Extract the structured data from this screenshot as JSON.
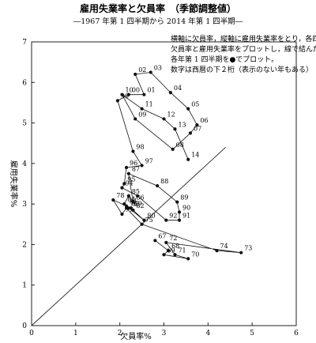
{
  "chart_data": {
    "type": "scatter",
    "title": "雇用失業率と欠員率　（季節調整値）",
    "subtitle": "―1967 年第 1 四半期から 2014 年第 1 四半期―",
    "notes": [
      "横軸に欠員率，縦軸に雇用失業率をとり，各四半期の",
      "欠員率と雇用失業率をプロットし，線で結んだもの。",
      "各年第 1 四半期を●でプロット。",
      "数字は西暦の下２桁（表示のない年もある）"
    ],
    "xlabel": "欠員率%",
    "ylabel": "雇用失業率%",
    "xlim": [
      0,
      6
    ],
    "ylim": [
      0,
      7
    ],
    "xticks": [
      "0",
      "1",
      "2",
      "3",
      "4",
      "5",
      "6"
    ],
    "yticks": [
      "0",
      "1",
      "2",
      "3",
      "4",
      "5",
      "6",
      "7"
    ],
    "reference_line": "y = x",
    "line_color": "#111111",
    "marker_color": "#111111",
    "points": [
      {
        "year": "67",
        "x": 2.8,
        "y": 2.1,
        "labeled": true
      },
      {
        "year": "68",
        "x": 3.1,
        "y": 1.85,
        "labeled": true
      },
      {
        "year": "69",
        "x": 3.0,
        "y": 1.75,
        "labeled": true
      },
      {
        "year": "70",
        "x": 3.55,
        "y": 1.65,
        "labeled": true
      },
      {
        "year": "71",
        "x": 3.25,
        "y": 1.75,
        "labeled": true
      },
      {
        "year": "72",
        "x": 3.05,
        "y": 2.05,
        "labeled": true
      },
      {
        "year": "73",
        "x": 4.75,
        "y": 1.8,
        "labeled": true
      },
      {
        "year": "74",
        "x": 4.2,
        "y": 1.85,
        "labeled": true
      },
      {
        "year": "75",
        "x": 2.5,
        "y": 2.5,
        "labeled": true
      },
      {
        "year": "76",
        "x": 2.15,
        "y": 2.9,
        "labeled": true
      },
      {
        "year": "77",
        "x": 2.05,
        "y": 2.75,
        "labeled": true
      },
      {
        "year": "78",
        "x": 1.85,
        "y": 3.1,
        "labeled": true
      },
      {
        "year": "79",
        "x": 2.25,
        "y": 2.9,
        "labeled": true
      },
      {
        "year": "80",
        "x": 2.55,
        "y": 2.6,
        "labeled": true
      },
      {
        "year": "81",
        "x": 2.15,
        "y": 2.95,
        "labeled": true
      },
      {
        "year": "82",
        "x": 2.3,
        "y": 2.85,
        "labeled": true
      },
      {
        "year": "83",
        "x": 2.2,
        "y": 2.9,
        "labeled": true
      },
      {
        "year": "84",
        "x": 2.1,
        "y": 3.0,
        "labeled": true
      },
      {
        "year": "85",
        "x": 2.2,
        "y": 3.2,
        "labeled": true
      },
      {
        "year": "86",
        "x": 2.3,
        "y": 3.05,
        "labeled": true
      },
      {
        "year": "87",
        "x": 2.2,
        "y": 3.75,
        "labeled": true
      },
      {
        "year": "88",
        "x": 2.85,
        "y": 3.45,
        "labeled": true
      },
      {
        "year": "89",
        "x": 3.3,
        "y": 3.05,
        "labeled": true
      },
      {
        "year": "90",
        "x": 3.35,
        "y": 2.8,
        "labeled": true
      },
      {
        "year": "91",
        "x": 3.35,
        "y": 2.6,
        "labeled": true
      },
      {
        "year": "92",
        "x": 3.05,
        "y": 2.6,
        "labeled": true
      },
      {
        "year": "93",
        "x": 2.4,
        "y": 3.2,
        "labeled": false
      },
      {
        "year": "94",
        "x": 2.05,
        "y": 3.4,
        "labeled": true
      },
      {
        "year": "95",
        "x": 2.1,
        "y": 3.5,
        "labeled": true
      },
      {
        "year": "96",
        "x": 2.15,
        "y": 3.9,
        "labeled": true
      },
      {
        "year": "97",
        "x": 2.5,
        "y": 3.95,
        "labeled": true
      },
      {
        "year": "98",
        "x": 2.3,
        "y": 4.3,
        "labeled": true
      },
      {
        "year": "99",
        "x": 1.95,
        "y": 5.55,
        "labeled": true
      },
      {
        "year": "00",
        "x": 2.2,
        "y": 5.7,
        "labeled": true
      },
      {
        "year": "01",
        "x": 2.55,
        "y": 5.7,
        "labeled": true
      },
      {
        "year": "02",
        "x": 2.35,
        "y": 6.2,
        "labeled": true
      },
      {
        "year": "03",
        "x": 2.7,
        "y": 6.25,
        "labeled": true
      },
      {
        "year": "04",
        "x": 3.15,
        "y": 5.75,
        "labeled": true
      },
      {
        "year": "05",
        "x": 3.55,
        "y": 5.35,
        "labeled": true
      },
      {
        "year": "06",
        "x": 3.75,
        "y": 4.95,
        "labeled": true
      },
      {
        "year": "07",
        "x": 3.6,
        "y": 4.75,
        "labeled": true
      },
      {
        "year": "08",
        "x": 3.2,
        "y": 4.35,
        "labeled": true
      },
      {
        "year": "09",
        "x": 2.35,
        "y": 5.1,
        "labeled": true
      },
      {
        "year": "10",
        "x": 2.05,
        "y": 5.7,
        "labeled": true
      },
      {
        "year": "11",
        "x": 2.5,
        "y": 5.35,
        "labeled": true
      },
      {
        "year": "12",
        "x": 3.0,
        "y": 5.1,
        "labeled": true
      },
      {
        "year": "13",
        "x": 3.25,
        "y": 4.85,
        "labeled": true
      },
      {
        "year": "14",
        "x": 3.55,
        "y": 4.1,
        "labeled": true
      }
    ]
  }
}
